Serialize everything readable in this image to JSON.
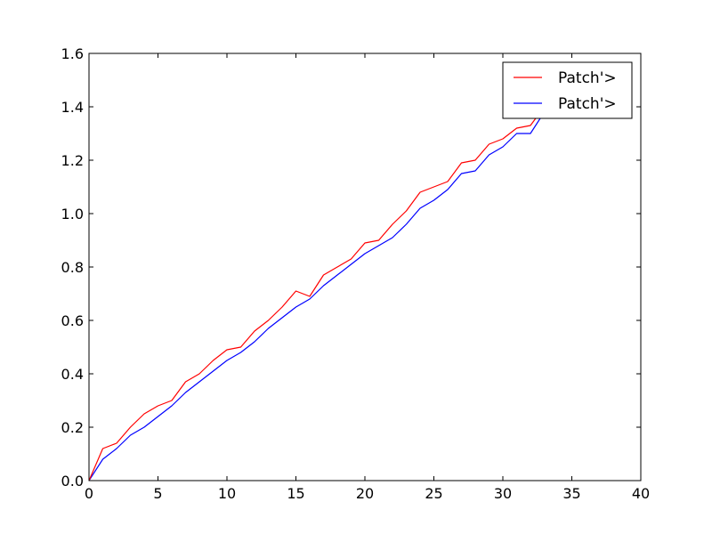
{
  "chart_data": {
    "type": "line",
    "title": "",
    "xlabel": "",
    "ylabel": "",
    "xlim": [
      0,
      40
    ],
    "ylim": [
      0,
      1.6
    ],
    "x_ticks": [
      0,
      5,
      10,
      15,
      20,
      25,
      30,
      35,
      40
    ],
    "y_ticks": [
      0.0,
      0.2,
      0.4,
      0.6,
      0.8,
      1.0,
      1.2,
      1.4,
      1.6
    ],
    "x_tick_labels": [
      "0",
      "5",
      "10",
      "15",
      "20",
      "25",
      "30",
      "35",
      "40"
    ],
    "y_tick_labels": [
      "0.0",
      "0.2",
      "0.4",
      "0.6",
      "0.8",
      "1.0",
      "1.2",
      "1.4",
      "1.6"
    ],
    "grid": false,
    "legend_position": "top-right",
    "legend": [
      "Patch'>",
      "Patch'>"
    ],
    "colors": [
      "#ff0000",
      "#0000ff"
    ],
    "x": [
      0,
      1,
      2,
      3,
      4,
      5,
      6,
      7,
      8,
      9,
      10,
      11,
      12,
      13,
      14,
      15,
      16,
      17,
      18,
      19,
      20,
      21,
      22,
      23,
      24,
      25,
      26,
      27,
      28,
      29,
      30,
      31,
      32,
      33
    ],
    "series": [
      {
        "values": [
          0.0,
          0.12,
          0.14,
          0.2,
          0.25,
          0.28,
          0.3,
          0.37,
          0.4,
          0.45,
          0.49,
          0.5,
          0.56,
          0.6,
          0.65,
          0.71,
          0.69,
          0.77,
          0.8,
          0.83,
          0.89,
          0.9,
          0.96,
          1.01,
          1.08,
          1.1,
          1.12,
          1.19,
          1.2,
          1.26,
          1.28,
          1.32,
          1.33,
          1.4
        ]
      },
      {
        "values": [
          0.0,
          0.08,
          0.12,
          0.17,
          0.2,
          0.24,
          0.28,
          0.33,
          0.37,
          0.41,
          0.45,
          0.48,
          0.52,
          0.57,
          0.61,
          0.65,
          0.68,
          0.73,
          0.77,
          0.81,
          0.85,
          0.88,
          0.91,
          0.96,
          1.02,
          1.05,
          1.09,
          1.15,
          1.16,
          1.22,
          1.25,
          1.3,
          1.3,
          1.38
        ]
      }
    ]
  }
}
